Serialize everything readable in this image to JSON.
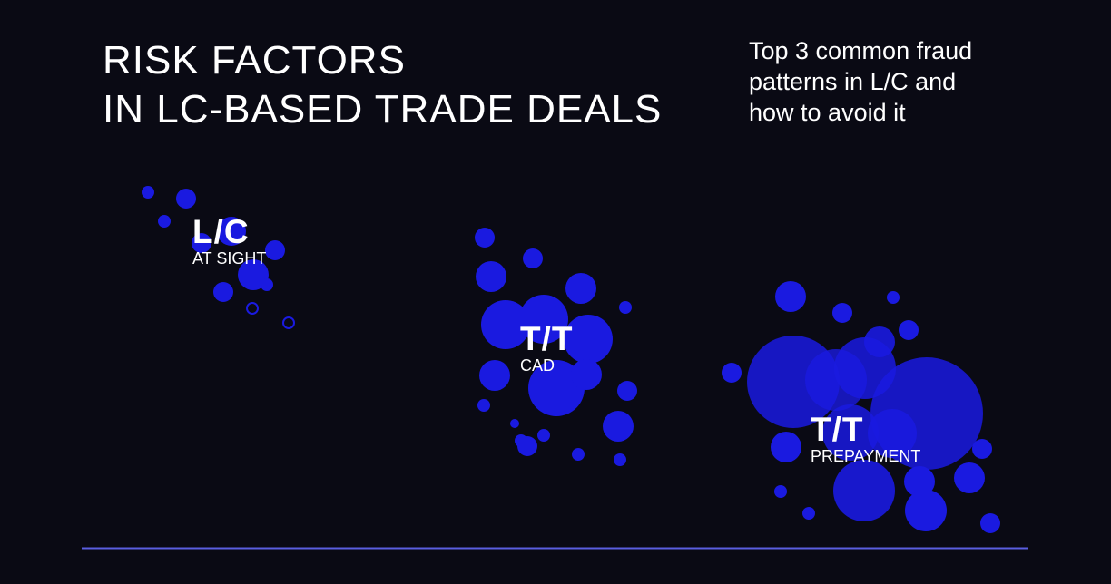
{
  "title": {
    "line1": "RISK FACTORS",
    "line2": "IN LC-BASED TRADE DEALS"
  },
  "subtitle": {
    "line1": "Top 3 common fraud",
    "line2": "patterns in L/C and",
    "line3": "how to avoid it"
  },
  "colors": {
    "background": "#0a0a14",
    "bubble": "#1a1ae0",
    "line_top": "#9aa4e8",
    "line_bottom": "#3a3ad8"
  },
  "columns": [
    {
      "id": "lc-at-sight",
      "label": "L/C",
      "sublabel": "AT SIGHT"
    },
    {
      "id": "tt-cad",
      "label": "T/T",
      "sublabel": "CAD"
    },
    {
      "id": "tt-prepayment",
      "label": "T/T",
      "sublabel": "PREPAYMENT"
    }
  ]
}
